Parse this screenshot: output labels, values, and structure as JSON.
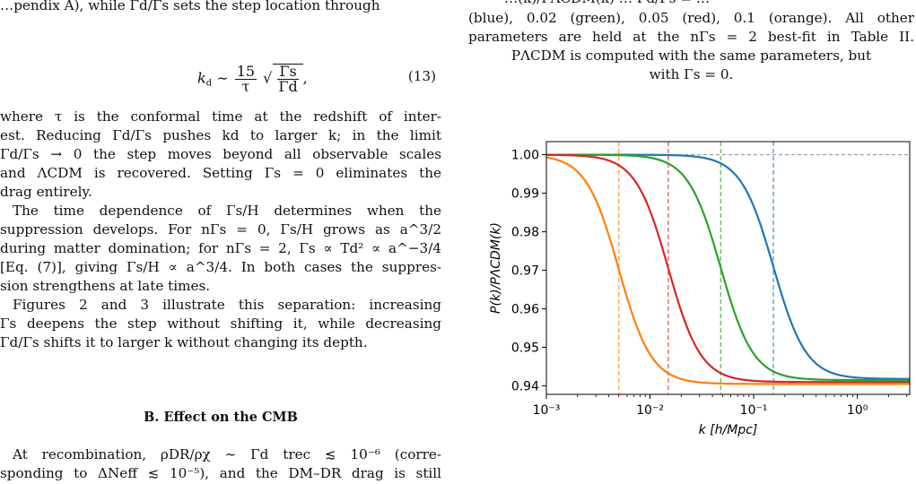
{
  "left": {
    "top_cut": "…pendix A), while Γd/Γs sets the step location through",
    "equation": {
      "lhs": "k",
      "lhs_sub": "d",
      "approx": "∼",
      "numerator": "15",
      "denominator": "τ",
      "root_num": "Γs",
      "root_den": "Γd",
      "trail": ",",
      "number": "(13)"
    },
    "para1": [
      "where τ is the conformal time at the redshift of inter-",
      "est. Reducing Γd/Γs pushes kd to larger k; in the limit",
      "Γd/Γs → 0 the step moves beyond all observable scales",
      "and ΛCDM is recovered. Setting Γs = 0 eliminates the",
      "drag entirely."
    ],
    "para2": [
      "The time dependence of Γs/H determines when the",
      "suppression develops. For nΓs = 0, Γs/H grows as a^3/2",
      "during matter domination; for nΓs = 2, Γs ∝ Td² ∝ a^−3/4",
      "[Eq. (7)], giving Γs/H ∝ a^3/4. In both cases the suppres-",
      "sion strengthens at late times."
    ],
    "para3": [
      "Figures 2 and 3 illustrate this separation: increasing",
      "Γs deepens the step without shifting it, while decreasing",
      "Γd/Γs shifts it to larger k without changing its depth."
    ],
    "section_heading": "B.   Effect on the CMB",
    "para4": [
      "At recombination, ρDR/ρχ ∼ Γd trec ≲ 10⁻⁶ (corre-",
      "sponding to ΔNeff ≲ 10⁻⁵), and the DM–DR drag is still"
    ]
  },
  "right": {
    "top_cut": "…(k)/PΛCDM(k) … Γd/Γs = …",
    "caption": [
      "(blue), 0.02 (green), 0.05 (red), 0.1 (orange). All other",
      "parameters are held at the nΓs = 2 best-fit in Table II.",
      "PΛCDM is computed with the same parameters, but",
      "with Γs = 0."
    ]
  },
  "chart_data": {
    "type": "line",
    "title": "",
    "xlabel": "k [h/Mpc]",
    "ylabel": "P(k)/PΛCDM(k)",
    "xscale": "log",
    "xlim": [
      0.001,
      3.2
    ],
    "ylim": [
      0.9378,
      1.0034
    ],
    "x_ticks": [
      0.001,
      0.01,
      0.1,
      1
    ],
    "x_tick_labels": [
      "10⁻³",
      "10⁻²",
      "10⁻¹",
      "10⁰"
    ],
    "y_ticks": [
      0.94,
      0.95,
      0.96,
      0.97,
      0.98,
      0.99,
      1.0
    ],
    "y_tick_labels": [
      "0.94",
      "0.95",
      "0.96",
      "0.97",
      "0.98",
      "0.99",
      "1.00"
    ],
    "grid": false,
    "legend": "none",
    "reference_line": {
      "y": 1.0,
      "style": "dashed",
      "color": "#8c8c8c"
    },
    "series": [
      {
        "color": "#1f77b4",
        "step_k": 0.155,
        "asymptote": 0.9418,
        "width_dex": 0.3,
        "points": [
          [
            0.001,
            1.0
          ],
          [
            0.01,
            0.9998
          ],
          [
            0.03,
            0.998
          ],
          [
            0.06,
            0.992
          ],
          [
            0.1,
            0.981
          ],
          [
            0.155,
            0.967
          ],
          [
            0.25,
            0.955
          ],
          [
            0.5,
            0.9465
          ],
          [
            1.0,
            0.9435
          ],
          [
            3.2,
            0.9418
          ]
        ]
      },
      {
        "color": "#2ca02c",
        "step_k": 0.048,
        "asymptote": 0.9415,
        "width_dex": 0.3,
        "points": [
          [
            0.001,
            1.0
          ],
          [
            0.005,
            0.9995
          ],
          [
            0.01,
            0.998
          ],
          [
            0.02,
            0.992
          ],
          [
            0.03,
            0.983
          ],
          [
            0.048,
            0.968
          ],
          [
            0.08,
            0.955
          ],
          [
            0.2,
            0.945
          ],
          [
            0.5,
            0.9425
          ],
          [
            3.2,
            0.9415
          ]
        ]
      },
      {
        "color": "#d62728",
        "step_k": 0.015,
        "asymptote": 0.941,
        "width_dex": 0.3,
        "points": [
          [
            0.001,
            0.9995
          ],
          [
            0.003,
            0.998
          ],
          [
            0.006,
            0.992
          ],
          [
            0.01,
            0.982
          ],
          [
            0.015,
            0.968
          ],
          [
            0.025,
            0.955
          ],
          [
            0.05,
            0.9455
          ],
          [
            0.1,
            0.9425
          ],
          [
            0.5,
            0.9415
          ],
          [
            3.2,
            0.941
          ]
        ]
      },
      {
        "color": "#ff7f0e",
        "step_k": 0.005,
        "asymptote": 0.9405,
        "width_dex": 0.3,
        "points": [
          [
            0.001,
            0.998
          ],
          [
            0.002,
            0.991
          ],
          [
            0.003,
            0.983
          ],
          [
            0.005,
            0.968
          ],
          [
            0.008,
            0.955
          ],
          [
            0.015,
            0.945
          ],
          [
            0.03,
            0.942
          ],
          [
            0.1,
            0.941
          ],
          [
            1.0,
            0.9405
          ],
          [
            3.2,
            0.9405
          ]
        ]
      }
    ],
    "vertical_markers": [
      {
        "k": 0.005,
        "color": "#ff7f0e",
        "style": "dashed"
      },
      {
        "k": 0.015,
        "color": "#d62728",
        "style": "dashed"
      },
      {
        "k": 0.048,
        "color": "#2ca02c",
        "style": "dashed"
      },
      {
        "k": 0.155,
        "color": "#1f77b4",
        "style": "dashed"
      }
    ]
  }
}
